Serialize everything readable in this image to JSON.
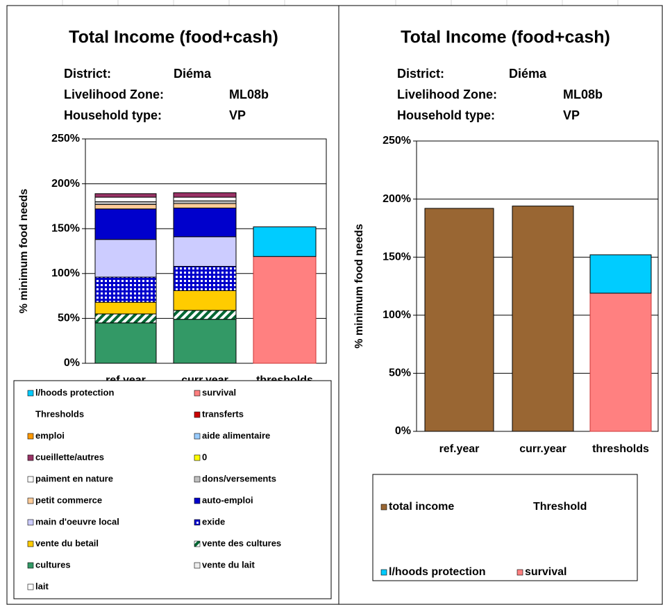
{
  "chart_data": [
    {
      "type": "bar",
      "stacked": true,
      "title": "Total Income (food+cash)",
      "info": [
        {
          "label": "District:",
          "value": "Diéma"
        },
        {
          "label": "Livelihood Zone:",
          "value": "ML08b"
        },
        {
          "label": "Household type:",
          "value": "VP"
        }
      ],
      "ylabel": "% minimum food needs",
      "categories": [
        "ref.year",
        "curr.year",
        "thresholds"
      ],
      "ylim": [
        0,
        250
      ],
      "yticks": [
        {
          "value": 0,
          "label": "0%"
        },
        {
          "value": 50,
          "label": "50%"
        },
        {
          "value": 100,
          "label": "100%"
        },
        {
          "value": 150,
          "label": "150%"
        },
        {
          "value": 200,
          "label": "200%"
        },
        {
          "value": 250,
          "label": "250%"
        }
      ],
      "grid": true,
      "series": [
        {
          "name": "l/hoods protection",
          "color": "#00ccff",
          "values": [
            0,
            0,
            33
          ]
        },
        {
          "name": "survival",
          "color": "#ff8080",
          "values": [
            0,
            0,
            119
          ]
        },
        {
          "name": "Thresholds",
          "color": null,
          "values": [
            0,
            0,
            0
          ]
        },
        {
          "name": "transferts",
          "color": "#cc0000",
          "values": [
            0,
            0,
            0
          ]
        },
        {
          "name": "emploi",
          "color": "#ff9900",
          "values": [
            0,
            0,
            0
          ]
        },
        {
          "name": "aide alimentaire",
          "color": "#99ccff",
          "values": [
            0,
            0,
            0
          ]
        },
        {
          "name": "cueillette/autres",
          "color": "#993366",
          "values": [
            4,
            5,
            0
          ]
        },
        {
          "name": "0",
          "color": "#ffff00",
          "values": [
            0,
            0,
            0
          ]
        },
        {
          "name": "paiment en nature",
          "color": "#ffffff",
          "values": [
            5,
            4,
            0
          ]
        },
        {
          "name": "dons/versements",
          "color": "#c0c0c0",
          "values": [
            3,
            3,
            0
          ]
        },
        {
          "name": "petit commerce",
          "color": "#ffcc99",
          "values": [
            5,
            5,
            0
          ]
        },
        {
          "name": "auto-emploi",
          "color": "#0000cc",
          "values": [
            34,
            32,
            0
          ]
        },
        {
          "name": "main d'oeuvre local",
          "color": "#ccccff",
          "values": [
            42,
            33,
            0
          ]
        },
        {
          "name": "exide",
          "color": "#0000cc",
          "pattern": "grid",
          "values": [
            28,
            27,
            0
          ]
        },
        {
          "name": "vente du betail",
          "color": "#ffcc00",
          "values": [
            13,
            22,
            0
          ]
        },
        {
          "name": "vente des cultures",
          "color": "#006633",
          "pattern": "hatch",
          "values": [
            10,
            10,
            0
          ]
        },
        {
          "name": "cultures",
          "color": "#339966",
          "values": [
            45,
            49,
            0
          ]
        },
        {
          "name": "vente du lait",
          "color": "#eeeeee",
          "values": [
            0,
            0,
            0
          ]
        },
        {
          "name": "lait",
          "color": "#ffffff",
          "values": [
            0,
            0,
            0
          ]
        }
      ]
    },
    {
      "type": "bar",
      "stacked": true,
      "title": "Total Income (food+cash)",
      "info": [
        {
          "label": "District:",
          "value": "Diéma"
        },
        {
          "label": "Livelihood Zone:",
          "value": "ML08b"
        },
        {
          "label": "Household type:",
          "value": "VP"
        }
      ],
      "ylabel": "% minimum food needs",
      "categories": [
        "ref.year",
        "curr.year",
        "thresholds"
      ],
      "ylim": [
        0,
        250
      ],
      "yticks": [
        {
          "value": 0,
          "label": "0%"
        },
        {
          "value": 50,
          "label": "50%"
        },
        {
          "value": 100,
          "label": "100%"
        },
        {
          "value": 150,
          "label": "150%"
        },
        {
          "value": 200,
          "label": "200%"
        },
        {
          "value": 250,
          "label": "250%"
        }
      ],
      "grid": true,
      "series": [
        {
          "name": "total income",
          "color": "#996633",
          "values": [
            192,
            194,
            0
          ]
        },
        {
          "name": "Threshold",
          "color": null,
          "values": [
            0,
            0,
            0
          ]
        },
        {
          "name": "l/hoods protection",
          "color": "#00ccff",
          "values": [
            0,
            0,
            33
          ]
        },
        {
          "name": "survival",
          "color": "#ff8080",
          "values": [
            0,
            0,
            119
          ]
        }
      ]
    }
  ]
}
